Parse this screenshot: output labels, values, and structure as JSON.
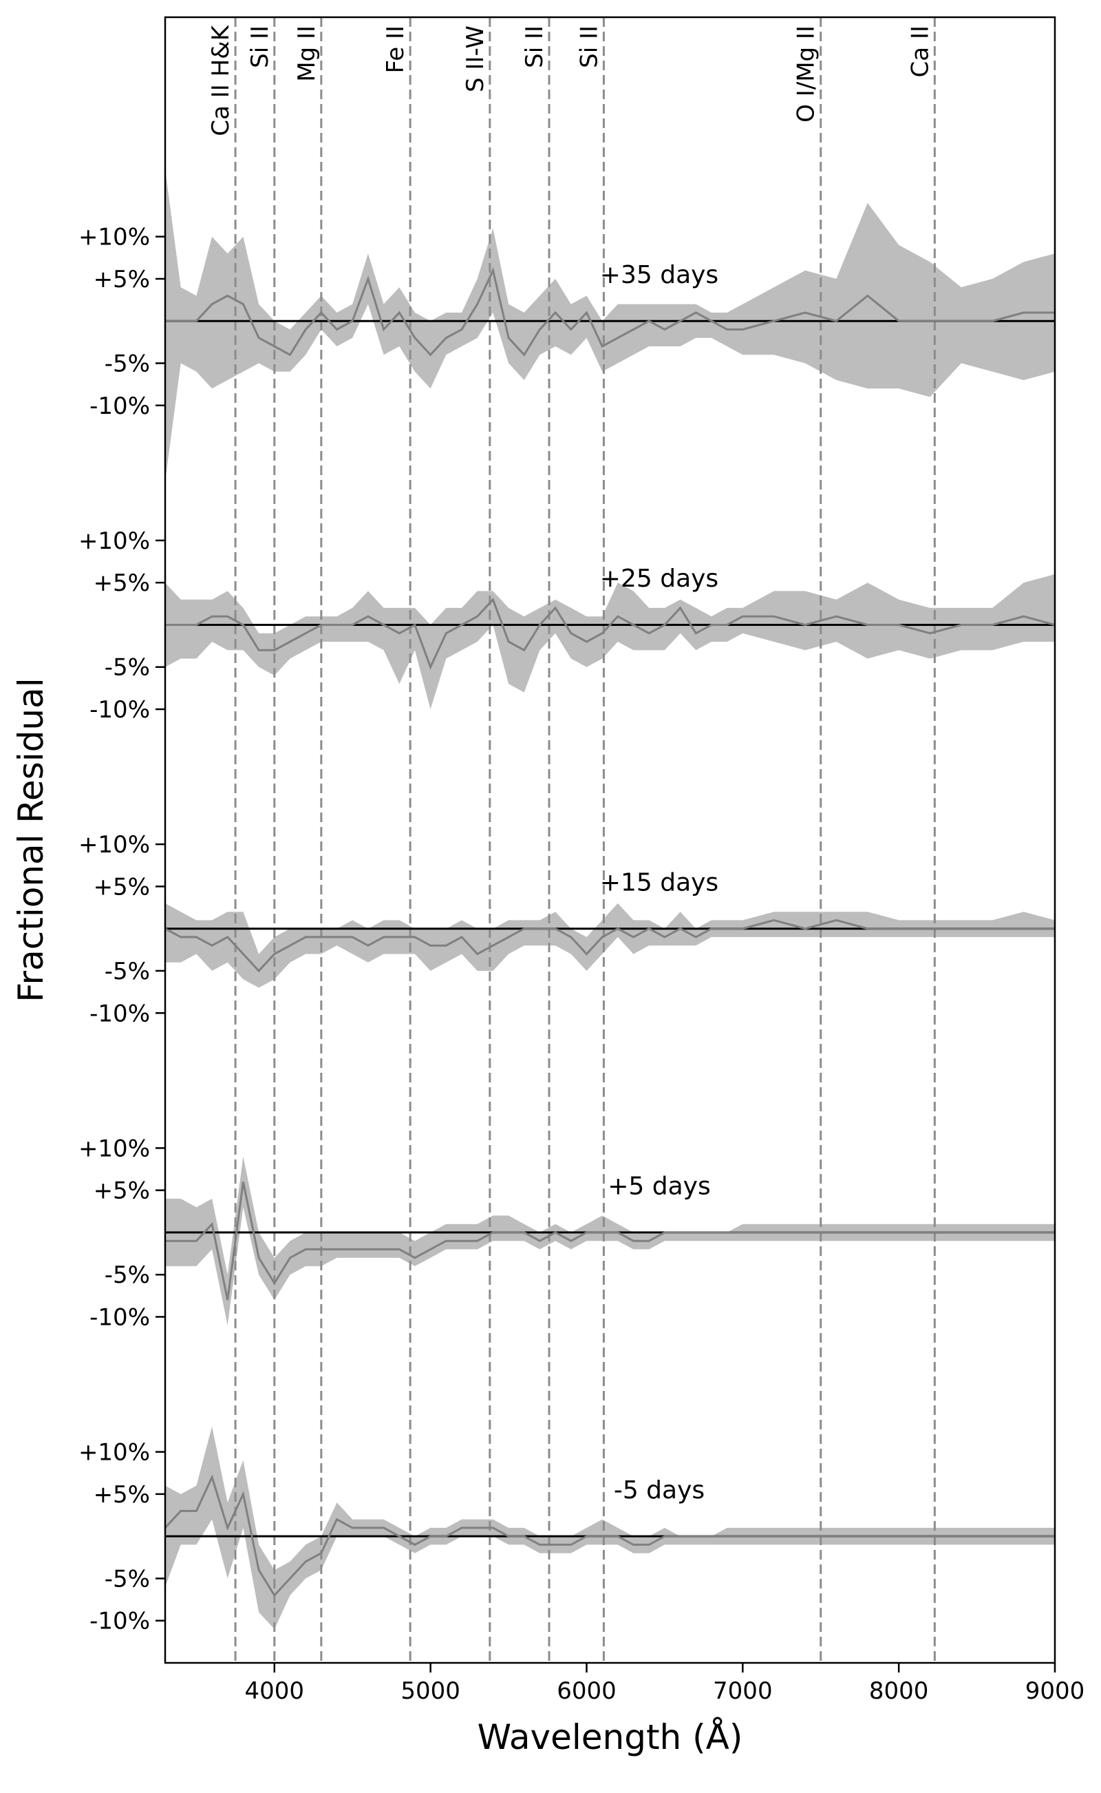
{
  "chart_data": [
    {
      "type": "line",
      "annotation": "+35 days",
      "ylabel": "Fractional Residual",
      "vlines": [
        {
          "x": 3750,
          "label": "Ca II H&K"
        },
        {
          "x": 4000,
          "label": "Si II"
        },
        {
          "x": 4300,
          "label": "Mg II"
        },
        {
          "x": 4870,
          "label": "Fe II"
        },
        {
          "x": 5380,
          "label": "S II-W"
        },
        {
          "x": 5760,
          "label": "Si II"
        },
        {
          "x": 6110,
          "label": "Si II"
        },
        {
          "x": 7500,
          "label": "O I/Mg II"
        },
        {
          "x": 8230,
          "label": "Ca II"
        }
      ],
      "xlim": [
        3300,
        9000
      ],
      "ylim": [
        -18,
        36
      ],
      "baseline": 0,
      "yticks": [
        {
          "value": 10,
          "label": "+10%"
        },
        {
          "value": 5,
          "label": "+5%"
        },
        {
          "value": -5,
          "label": "-5%"
        },
        {
          "value": -10,
          "label": "-10%"
        }
      ],
      "color": "#808080",
      "band_color": "#bdbdbd",
      "x": [
        3300,
        3400,
        3500,
        3600,
        3700,
        3800,
        3900,
        4000,
        4100,
        4200,
        4300,
        4400,
        4500,
        4600,
        4700,
        4800,
        4900,
        5000,
        5100,
        5200,
        5300,
        5400,
        5500,
        5600,
        5700,
        5800,
        5900,
        6000,
        6100,
        6200,
        6300,
        6400,
        6500,
        6600,
        6700,
        6800,
        6900,
        7000,
        7200,
        7400,
        7600,
        7800,
        8000,
        8200,
        8400,
        8600,
        8800,
        9000
      ],
      "values": [
        0,
        0,
        0,
        2,
        3,
        2,
        -2,
        -3,
        -4,
        -1,
        1,
        -1,
        0,
        5,
        -1,
        1,
        -2,
        -4,
        -2,
        -1,
        2,
        6,
        -2,
        -4,
        -1,
        1,
        -1,
        1,
        -3,
        -2,
        -1,
        0,
        -1,
        0,
        1,
        0,
        -1,
        -1,
        0,
        1,
        0,
        3,
        0,
        0,
        0,
        0,
        1,
        1
      ],
      "upper": [
        18,
        4,
        3,
        10,
        8,
        10,
        2,
        0,
        -1,
        1,
        3,
        1,
        2,
        8,
        2,
        4,
        1,
        0,
        1,
        1,
        5,
        11,
        2,
        1,
        3,
        5,
        2,
        3,
        0,
        2,
        2,
        2,
        2,
        2,
        2,
        1,
        1,
        2,
        4,
        6,
        5,
        14,
        9,
        7,
        4,
        5,
        7,
        8
      ],
      "lower": [
        -19,
        -5,
        -6,
        -8,
        -7,
        -6,
        -5,
        -6,
        -6,
        -4,
        -1,
        -3,
        -2,
        2,
        -4,
        -3,
        -6,
        -8,
        -4,
        -3,
        -2,
        1,
        -5,
        -7,
        -4,
        -3,
        -4,
        -2,
        -6,
        -5,
        -4,
        -3,
        -3,
        -3,
        -2,
        -2,
        -3,
        -4,
        -4,
        -5,
        -7,
        -8,
        -8,
        -9,
        -5,
        -6,
        -7,
        -6
      ]
    },
    {
      "type": "line",
      "annotation": "+25 days",
      "xlim": [
        3300,
        9000
      ],
      "ylim": [
        -18,
        18
      ],
      "baseline": 0,
      "yticks": [
        {
          "value": 10,
          "label": "+10%"
        },
        {
          "value": 5,
          "label": "+5%"
        },
        {
          "value": -5,
          "label": "-5%"
        },
        {
          "value": -10,
          "label": "-10%"
        }
      ],
      "color": "#808080",
      "band_color": "#bdbdbd",
      "x": [
        3300,
        3400,
        3500,
        3600,
        3700,
        3800,
        3900,
        4000,
        4100,
        4200,
        4300,
        4400,
        4500,
        4600,
        4700,
        4800,
        4900,
        5000,
        5100,
        5200,
        5300,
        5400,
        5500,
        5600,
        5700,
        5800,
        5900,
        6000,
        6100,
        6200,
        6300,
        6400,
        6500,
        6600,
        6700,
        6800,
        6900,
        7000,
        7200,
        7400,
        7600,
        7800,
        8000,
        8200,
        8400,
        8600,
        8800,
        9000
      ],
      "values": [
        0,
        0,
        0,
        1,
        1,
        0,
        -3,
        -3,
        -2,
        -1,
        0,
        0,
        0,
        1,
        0,
        -1,
        0,
        -5,
        -1,
        0,
        1,
        3,
        -2,
        -3,
        0,
        2,
        -1,
        -2,
        -1,
        1,
        0,
        -1,
        0,
        2,
        -1,
        0,
        0,
        1,
        1,
        0,
        1,
        0,
        0,
        -1,
        0,
        0,
        1,
        0
      ],
      "upper": [
        5,
        3,
        3,
        3,
        4,
        2,
        -1,
        -1,
        0,
        1,
        1,
        1,
        2,
        4,
        2,
        2,
        2,
        0,
        2,
        2,
        4,
        4,
        2,
        1,
        2,
        3,
        2,
        1,
        1,
        5,
        4,
        2,
        2,
        3,
        2,
        1,
        2,
        2,
        4,
        4,
        3,
        5,
        3,
        2,
        2,
        2,
        5,
        6
      ],
      "lower": [
        -5,
        -4,
        -4,
        -2,
        -3,
        -3,
        -5,
        -6,
        -4,
        -3,
        -2,
        -2,
        -2,
        -2,
        -3,
        -7,
        -3,
        -10,
        -4,
        -3,
        -2,
        0,
        -7,
        -8,
        -3,
        -1,
        -4,
        -5,
        -4,
        -2,
        -3,
        -3,
        -3,
        -1,
        -3,
        -2,
        -2,
        -1,
        -2,
        -3,
        -2,
        -4,
        -3,
        -4,
        -3,
        -3,
        -2,
        -2
      ]
    },
    {
      "type": "line",
      "annotation": "+15 days",
      "xlim": [
        3300,
        9000
      ],
      "ylim": [
        -18,
        18
      ],
      "baseline": 0,
      "yticks": [
        {
          "value": 10,
          "label": "+10%"
        },
        {
          "value": 5,
          "label": "+5%"
        },
        {
          "value": -5,
          "label": "-5%"
        },
        {
          "value": -10,
          "label": "-10%"
        }
      ],
      "color": "#808080",
      "band_color": "#bdbdbd",
      "x": [
        3300,
        3400,
        3500,
        3600,
        3700,
        3800,
        3900,
        4000,
        4100,
        4200,
        4300,
        4400,
        4500,
        4600,
        4700,
        4800,
        4900,
        5000,
        5100,
        5200,
        5300,
        5400,
        5500,
        5600,
        5700,
        5800,
        5900,
        6000,
        6100,
        6200,
        6300,
        6400,
        6500,
        6600,
        6700,
        6800,
        6900,
        7000,
        7200,
        7400,
        7600,
        7800,
        8000,
        8200,
        8400,
        8600,
        8800,
        9000
      ],
      "values": [
        0,
        -1,
        -1,
        -2,
        -1,
        -3,
        -5,
        -3,
        -2,
        -1,
        -1,
        -1,
        -1,
        -2,
        -1,
        -1,
        -1,
        -2,
        -2,
        -1,
        -3,
        -2,
        -1,
        0,
        0,
        0,
        -1,
        -3,
        -1,
        0,
        -1,
        0,
        -1,
        0,
        -1,
        0,
        0,
        0,
        1,
        0,
        1,
        0,
        0,
        0,
        0,
        0,
        0,
        0
      ],
      "upper": [
        3,
        2,
        1,
        1,
        2,
        2,
        -3,
        -1,
        0,
        0,
        0,
        0,
        1,
        0,
        1,
        1,
        0,
        0,
        0,
        1,
        0,
        0,
        1,
        1,
        1,
        2,
        0,
        -1,
        1,
        3,
        1,
        1,
        0,
        2,
        0,
        1,
        1,
        1,
        2,
        2,
        2,
        2,
        1,
        1,
        1,
        1,
        2,
        1
      ],
      "lower": [
        -4,
        -4,
        -3,
        -5,
        -4,
        -6,
        -7,
        -6,
        -4,
        -3,
        -3,
        -2,
        -3,
        -4,
        -3,
        -3,
        -3,
        -5,
        -4,
        -3,
        -5,
        -5,
        -3,
        -2,
        -2,
        -2,
        -3,
        -5,
        -3,
        -1,
        -3,
        -2,
        -2,
        -2,
        -2,
        -1,
        -1,
        -1,
        -1,
        -1,
        -1,
        -1,
        -1,
        -1,
        -1,
        -1,
        -1,
        -1
      ]
    },
    {
      "type": "line",
      "annotation": "+5 days",
      "xlim": [
        3300,
        9000
      ],
      "ylim": [
        -18,
        18
      ],
      "baseline": 0,
      "yticks": [
        {
          "value": 10,
          "label": "+10%"
        },
        {
          "value": 5,
          "label": "+5%"
        },
        {
          "value": -5,
          "label": "-5%"
        },
        {
          "value": -10,
          "label": "-10%"
        }
      ],
      "color": "#808080",
      "band_color": "#bdbdbd",
      "x": [
        3300,
        3400,
        3500,
        3600,
        3700,
        3800,
        3900,
        4000,
        4100,
        4200,
        4300,
        4400,
        4500,
        4600,
        4700,
        4800,
        4900,
        5000,
        5100,
        5200,
        5300,
        5400,
        5500,
        5600,
        5700,
        5800,
        5900,
        6000,
        6100,
        6200,
        6300,
        6400,
        6500,
        6600,
        6700,
        6800,
        6900,
        7000,
        7200,
        7400,
        7600,
        7800,
        8000,
        8200,
        8400,
        8600,
        8800,
        9000
      ],
      "values": [
        -1,
        -1,
        -1,
        1,
        -8,
        6,
        -3,
        -6,
        -3,
        -2,
        -2,
        -2,
        -2,
        -2,
        -2,
        -2,
        -3,
        -2,
        -1,
        -1,
        -1,
        0,
        0,
        0,
        -1,
        0,
        -1,
        0,
        0,
        0,
        -1,
        -1,
        0,
        0,
        0,
        0,
        0,
        0,
        0,
        0,
        0,
        0,
        0,
        0,
        0,
        0,
        0,
        0
      ],
      "upper": [
        4,
        4,
        3,
        4,
        -5,
        9,
        0,
        -3,
        -1,
        0,
        0,
        0,
        0,
        0,
        0,
        0,
        -1,
        0,
        1,
        1,
        1,
        2,
        2,
        1,
        0,
        1,
        0,
        1,
        2,
        1,
        0,
        0,
        0,
        0,
        0,
        0,
        0,
        1,
        1,
        1,
        1,
        1,
        1,
        1,
        1,
        1,
        1,
        1
      ],
      "lower": [
        -4,
        -4,
        -4,
        -2,
        -11,
        3,
        -5,
        -8,
        -5,
        -4,
        -4,
        -3,
        -3,
        -3,
        -3,
        -3,
        -4,
        -3,
        -2,
        -2,
        -2,
        -1,
        -1,
        -1,
        -2,
        -1,
        -2,
        -1,
        -1,
        -1,
        -2,
        -2,
        -1,
        -1,
        -1,
        -1,
        -1,
        -1,
        -1,
        -1,
        -1,
        -1,
        -1,
        -1,
        -1,
        -1,
        -1,
        -1
      ]
    },
    {
      "type": "line",
      "annotation": "-5 days",
      "xlabel": "Wavelength (Å)",
      "xticks": [
        4000,
        5000,
        6000,
        7000,
        8000,
        9000
      ],
      "xlim": [
        3300,
        9000
      ],
      "ylim": [
        -15,
        18
      ],
      "baseline": 0,
      "yticks": [
        {
          "value": 10,
          "label": "+10%"
        },
        {
          "value": 5,
          "label": "+5%"
        },
        {
          "value": -5,
          "label": "-5%"
        },
        {
          "value": -10,
          "label": "-10%"
        }
      ],
      "color": "#808080",
      "band_color": "#bdbdbd",
      "x": [
        3300,
        3400,
        3500,
        3600,
        3700,
        3800,
        3900,
        4000,
        4100,
        4200,
        4300,
        4400,
        4500,
        4600,
        4700,
        4800,
        4900,
        5000,
        5100,
        5200,
        5300,
        5400,
        5500,
        5600,
        5700,
        5800,
        5900,
        6000,
        6100,
        6200,
        6300,
        6400,
        6500,
        6600,
        6700,
        6800,
        6900,
        7000,
        7200,
        7400,
        7600,
        7800,
        8000,
        8200,
        8400,
        8600,
        8800,
        9000
      ],
      "values": [
        1,
        3,
        3,
        7,
        1,
        5,
        -4,
        -7,
        -5,
        -3,
        -2,
        2,
        1,
        1,
        1,
        0,
        -1,
        0,
        0,
        1,
        1,
        1,
        0,
        0,
        -1,
        -1,
        -1,
        0,
        0,
        0,
        -1,
        -1,
        0,
        0,
        0,
        0,
        0,
        0,
        0,
        0,
        0,
        0,
        0,
        0,
        0,
        0,
        0,
        0
      ],
      "upper": [
        6,
        5,
        6,
        13,
        4,
        9,
        -1,
        -4,
        -3,
        -1,
        0,
        4,
        2,
        2,
        2,
        1,
        0,
        1,
        1,
        2,
        2,
        2,
        1,
        1,
        0,
        0,
        0,
        1,
        2,
        1,
        0,
        0,
        1,
        0,
        0,
        0,
        1,
        1,
        1,
        1,
        1,
        1,
        1,
        1,
        1,
        1,
        1,
        1
      ],
      "lower": [
        -6,
        -1,
        -1,
        2,
        -5,
        1,
        -9,
        -11,
        -7,
        -5,
        -4,
        0,
        0,
        0,
        0,
        -1,
        -2,
        -1,
        -1,
        0,
        0,
        0,
        -1,
        -1,
        -2,
        -2,
        -2,
        -1,
        -1,
        -1,
        -2,
        -2,
        -1,
        -1,
        -1,
        -1,
        -1,
        -1,
        -1,
        -1,
        -1,
        -1,
        -1,
        -1,
        -1,
        -1,
        -1,
        -1
      ]
    }
  ]
}
